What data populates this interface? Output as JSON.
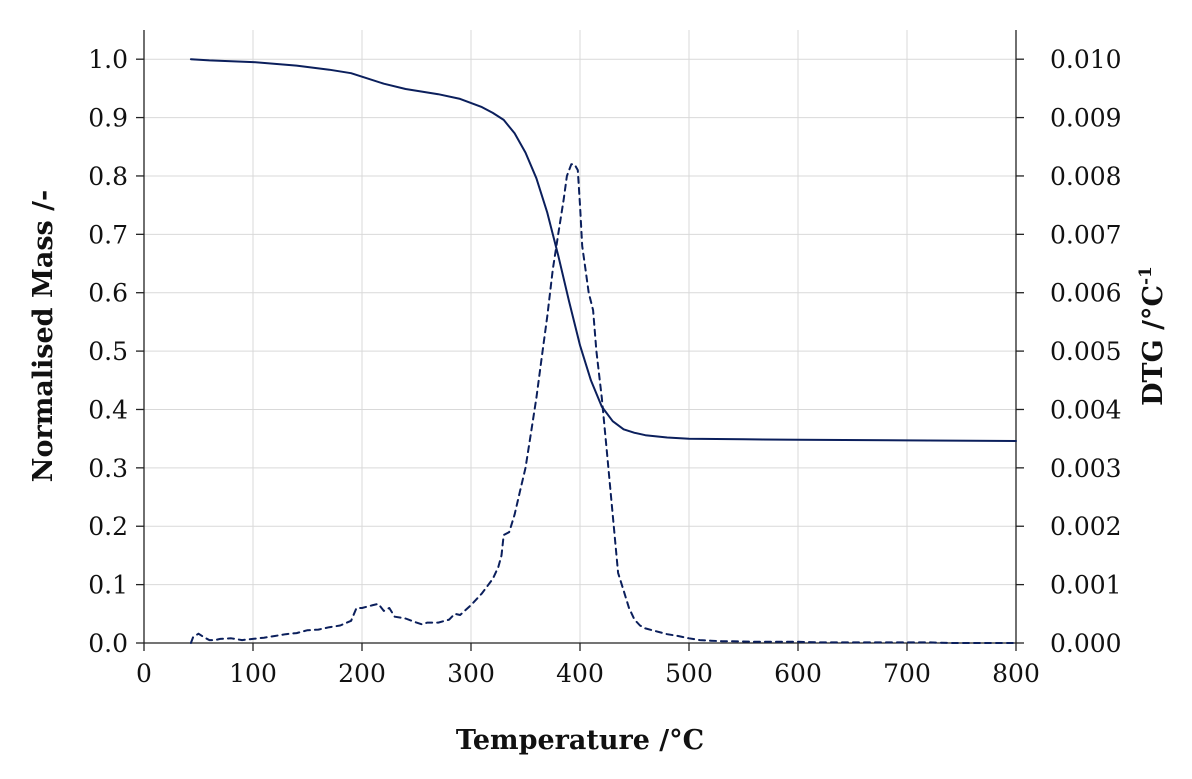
{
  "chart_data": {
    "type": "line",
    "title": "",
    "xlabel": "Temperature /°C",
    "ylabel": "Normalised Mass /-",
    "y2label_main": "DTG  /°C",
    "y2label_sup": "-1",
    "xlim": [
      0,
      800
    ],
    "ylim": [
      0,
      1.05
    ],
    "y2lim": [
      0,
      0.0105
    ],
    "grid": true,
    "legend": "none",
    "colors": {
      "series": "#0b1f5c"
    },
    "x_ticks": [
      "0",
      "100",
      "200",
      "300",
      "400",
      "500",
      "600",
      "700",
      "800"
    ],
    "y_ticks": [
      "0.0",
      "0.1",
      "0.2",
      "0.3",
      "0.4",
      "0.5",
      "0.6",
      "0.7",
      "0.8",
      "0.9",
      "1.0"
    ],
    "y2_ticks": [
      "0.000",
      "0.001",
      "0.002",
      "0.003",
      "0.004",
      "0.005",
      "0.006",
      "0.007",
      "0.008",
      "0.009",
      "0.010"
    ],
    "series": [
      {
        "axis": "left",
        "style": "solid",
        "x": [
          43,
          60,
          100,
          140,
          170,
          190,
          200,
          220,
          240,
          270,
          290,
          310,
          320,
          330,
          340,
          350,
          360,
          370,
          380,
          390,
          400,
          410,
          420,
          430,
          440,
          450,
          460,
          480,
          500,
          550,
          600,
          700,
          800
        ],
        "y": [
          1.0,
          0.998,
          0.995,
          0.989,
          0.982,
          0.976,
          0.97,
          0.958,
          0.949,
          0.94,
          0.932,
          0.918,
          0.908,
          0.896,
          0.873,
          0.84,
          0.796,
          0.737,
          0.664,
          0.585,
          0.51,
          0.45,
          0.405,
          0.38,
          0.366,
          0.36,
          0.356,
          0.352,
          0.35,
          0.349,
          0.348,
          0.347,
          0.346
        ]
      },
      {
        "axis": "right",
        "style": "dashed",
        "x": [
          43,
          45,
          50,
          55,
          60,
          65,
          70,
          80,
          90,
          100,
          110,
          120,
          130,
          140,
          150,
          160,
          170,
          180,
          190,
          195,
          200,
          210,
          215,
          220,
          225,
          230,
          240,
          250,
          255,
          260,
          270,
          280,
          285,
          290,
          300,
          310,
          320,
          325,
          328,
          330,
          335,
          340,
          345,
          350,
          355,
          360,
          365,
          370,
          375,
          380,
          385,
          388,
          392,
          395,
          398,
          400,
          402,
          405,
          408,
          412,
          415,
          420,
          425,
          430,
          435,
          440,
          445,
          450,
          455,
          460,
          470,
          480,
          490,
          500,
          510,
          520,
          530,
          540,
          560,
          580,
          600,
          620,
          640,
          660,
          680,
          700,
          720,
          740,
          760,
          780,
          800
        ],
        "y": [
          0.0,
          0.0001,
          0.00016,
          0.0001,
          5e-05,
          5e-05,
          7e-05,
          8e-05,
          5e-05,
          7e-05,
          9e-05,
          0.00012,
          0.00015,
          0.00017,
          0.00022,
          0.00023,
          0.00027,
          0.0003,
          0.00038,
          0.0006,
          0.0006,
          0.00065,
          0.00067,
          0.00055,
          0.0006,
          0.00045,
          0.00042,
          0.00035,
          0.00032,
          0.00035,
          0.00035,
          0.0004,
          0.0005,
          0.00048,
          0.00065,
          0.00085,
          0.0011,
          0.0013,
          0.0015,
          0.00185,
          0.0019,
          0.0022,
          0.0026,
          0.003,
          0.0036,
          0.0042,
          0.0049,
          0.0056,
          0.0064,
          0.007,
          0.0076,
          0.008,
          0.0082,
          0.0082,
          0.0081,
          0.0075,
          0.0068,
          0.0064,
          0.006,
          0.0057,
          0.005,
          0.0042,
          0.0032,
          0.0022,
          0.0012,
          0.0009,
          0.0006,
          0.0004,
          0.0003,
          0.00025,
          0.0002,
          0.00015,
          0.00012,
          8e-05,
          5e-05,
          4e-05,
          3e-05,
          3e-05,
          2e-05,
          2e-05,
          2e-05,
          1e-05,
          1e-05,
          1e-05,
          1e-05,
          1e-05,
          1e-05,
          0.0,
          0.0,
          0.0,
          0.0
        ]
      }
    ]
  }
}
